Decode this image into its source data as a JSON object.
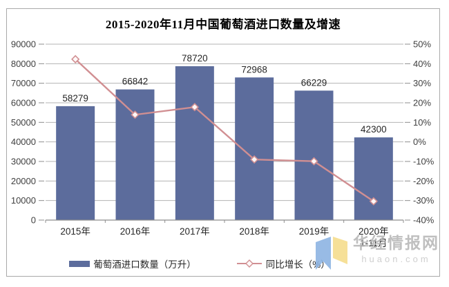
{
  "chart_data": {
    "type": "bar",
    "subtype": "bar-line-combo",
    "title": "2015-2020年11月中国葡萄酒进口数量及增速",
    "categories": [
      "2015年",
      "2016年",
      "2017年",
      "2018年",
      "2019年",
      "2020年"
    ],
    "category_note": {
      "index": 5,
      "text": "1-11月"
    },
    "series": [
      {
        "name": "葡萄酒进口数量（万升）",
        "type": "bar",
        "axis": "left",
        "color": "#5c6c9c",
        "values": [
          58279,
          66842,
          78720,
          72968,
          66229,
          42300
        ]
      },
      {
        "name": "同比增长（%）",
        "type": "line",
        "axis": "right",
        "color": "#d18f92",
        "marker": "diamond-open",
        "values": [
          42.3,
          13.9,
          17.8,
          -9.0,
          -9.9,
          -30.4
        ]
      }
    ],
    "left_axis": {
      "min": 0,
      "max": 90000,
      "step": 10000,
      "ticks": [
        "90000",
        "80000",
        "70000",
        "60000",
        "50000",
        "40000",
        "30000",
        "20000",
        "10000",
        "0"
      ]
    },
    "right_axis": {
      "min": -40,
      "max": 50,
      "step": 10,
      "ticks": [
        "50%",
        "40%",
        "30%",
        "20%",
        "10%",
        "0%",
        "-10%",
        "-20%",
        "-30%",
        "-40%"
      ]
    },
    "grid": true,
    "legend_position": "bottom"
  },
  "colors": {
    "bar": "#5c6c9c",
    "line": "#d18f92",
    "marker_fill": "#fdf8f8",
    "grid": "#b3b3b3",
    "axis": "#8c8c8c",
    "axis_text": "#3f3f3f",
    "value_label": "#262626",
    "logo_blue": "#8db4e2",
    "logo_yellow": "#f5dd8d"
  },
  "watermark": {
    "name": "华经情报网",
    "domain": "huaon.com"
  }
}
